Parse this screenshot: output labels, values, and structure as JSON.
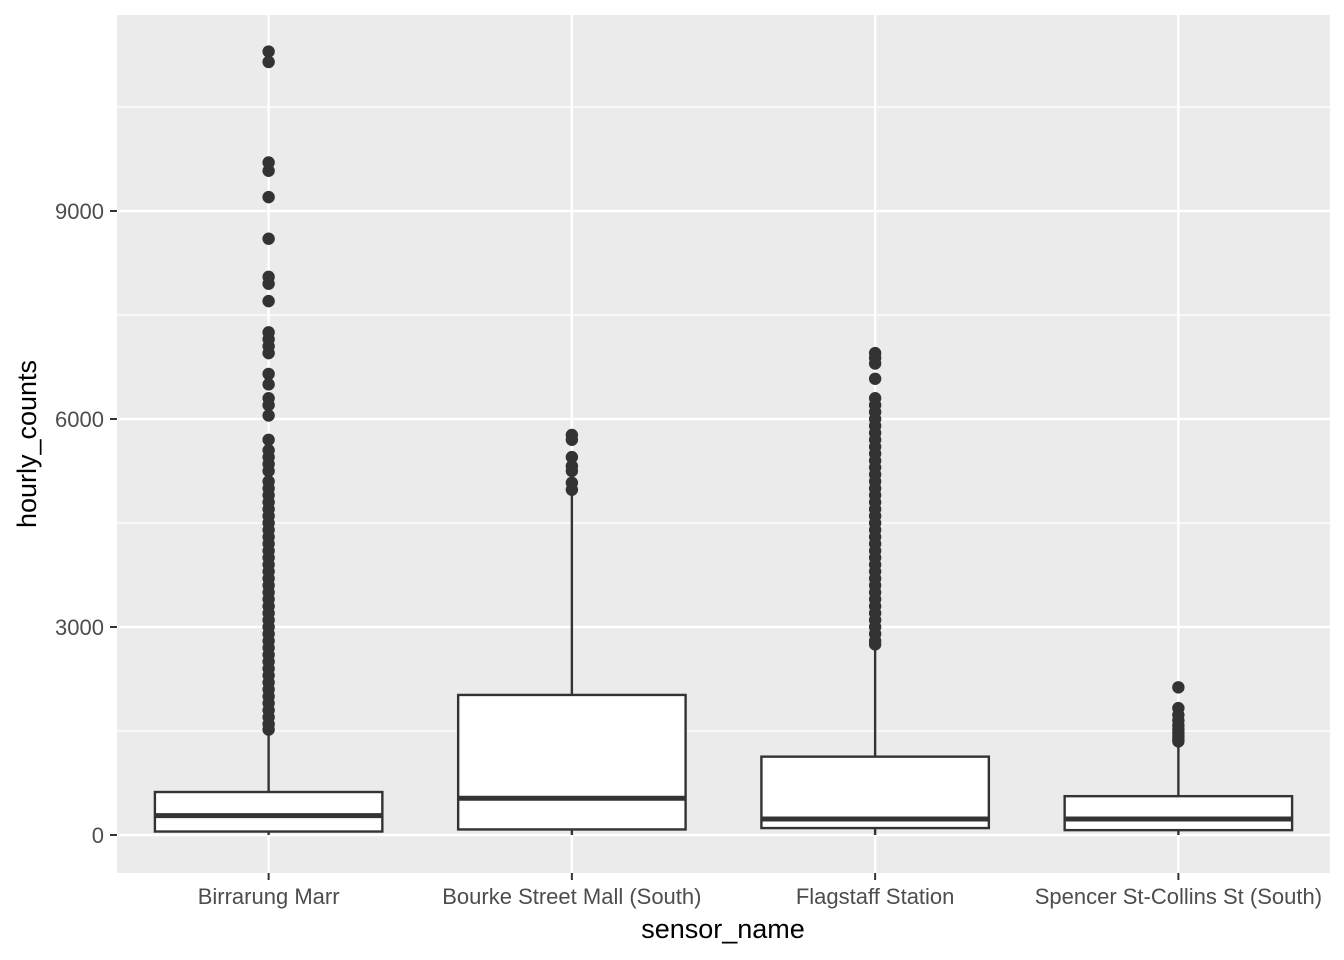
{
  "chart_data": {
    "type": "boxplot",
    "xlabel": "sensor_name",
    "ylabel": "hourly_counts",
    "ylim": [
      -600,
      11800
    ],
    "yticks": [
      0,
      3000,
      6000,
      9000
    ],
    "y_minor_ticks": [
      1500,
      4500,
      7500,
      10500
    ],
    "grid": true,
    "colors": {
      "panel": "#ebebeb",
      "grid": "#ffffff",
      "box_fill": "#ffffff",
      "box_stroke": "#333333",
      "outlier": "#333333",
      "tick_text": "#4d4d4d"
    },
    "categories": [
      "Birrarung Marr",
      "Bourke Street Mall (South)",
      "Flagstaff Station",
      "Spencer St-Collins St (South)"
    ],
    "boxes": [
      {
        "category": "Birrarung Marr",
        "whisker_low": 0,
        "q1": 50,
        "median": 280,
        "q3": 620,
        "whisker_high": 1460,
        "outliers": [
          11300,
          11150,
          9700,
          9580,
          9200,
          8600,
          8050,
          7950,
          7700,
          7250,
          7150,
          7050,
          6950,
          6650,
          6500,
          6300,
          6200,
          6050,
          5700,
          5550,
          5450,
          5350,
          5250,
          5100,
          5000,
          4900,
          4800,
          4700,
          4600,
          4500,
          4400,
          4300,
          4200,
          4100,
          4000,
          3900,
          3800,
          3700,
          3600,
          3500,
          3400,
          3300,
          3200,
          3100,
          3000,
          2900,
          2800,
          2700,
          2600,
          2500,
          2400,
          2300,
          2200,
          2100,
          2000,
          1900,
          1800,
          1700,
          1600,
          1520
        ]
      },
      {
        "category": "Bourke Street Mall (South)",
        "whisker_low": 0,
        "q1": 80,
        "median": 530,
        "q3": 2020,
        "whisker_high": 4920,
        "outliers": [
          5770,
          5700,
          5450,
          5320,
          5250,
          5080,
          4980
        ]
      },
      {
        "category": "Flagstaff Station",
        "whisker_low": 0,
        "q1": 100,
        "median": 230,
        "q3": 1130,
        "whisker_high": 2690,
        "outliers": [
          6950,
          6880,
          6800,
          6580,
          6300,
          6200,
          6100,
          6000,
          5900,
          5800,
          5700,
          5600,
          5500,
          5400,
          5300,
          5200,
          5100,
          5000,
          4900,
          4800,
          4700,
          4600,
          4500,
          4400,
          4300,
          4200,
          4100,
          4000,
          3900,
          3800,
          3700,
          3600,
          3500,
          3400,
          3300,
          3200,
          3100,
          3000,
          2900,
          2800,
          2750
        ]
      },
      {
        "category": "Spencer St-Collins St (South)",
        "whisker_low": 0,
        "q1": 70,
        "median": 230,
        "q3": 560,
        "whisker_high": 1310,
        "outliers": [
          2130,
          1830,
          1730,
          1650,
          1580,
          1520,
          1470,
          1420,
          1380,
          1350
        ]
      }
    ]
  }
}
